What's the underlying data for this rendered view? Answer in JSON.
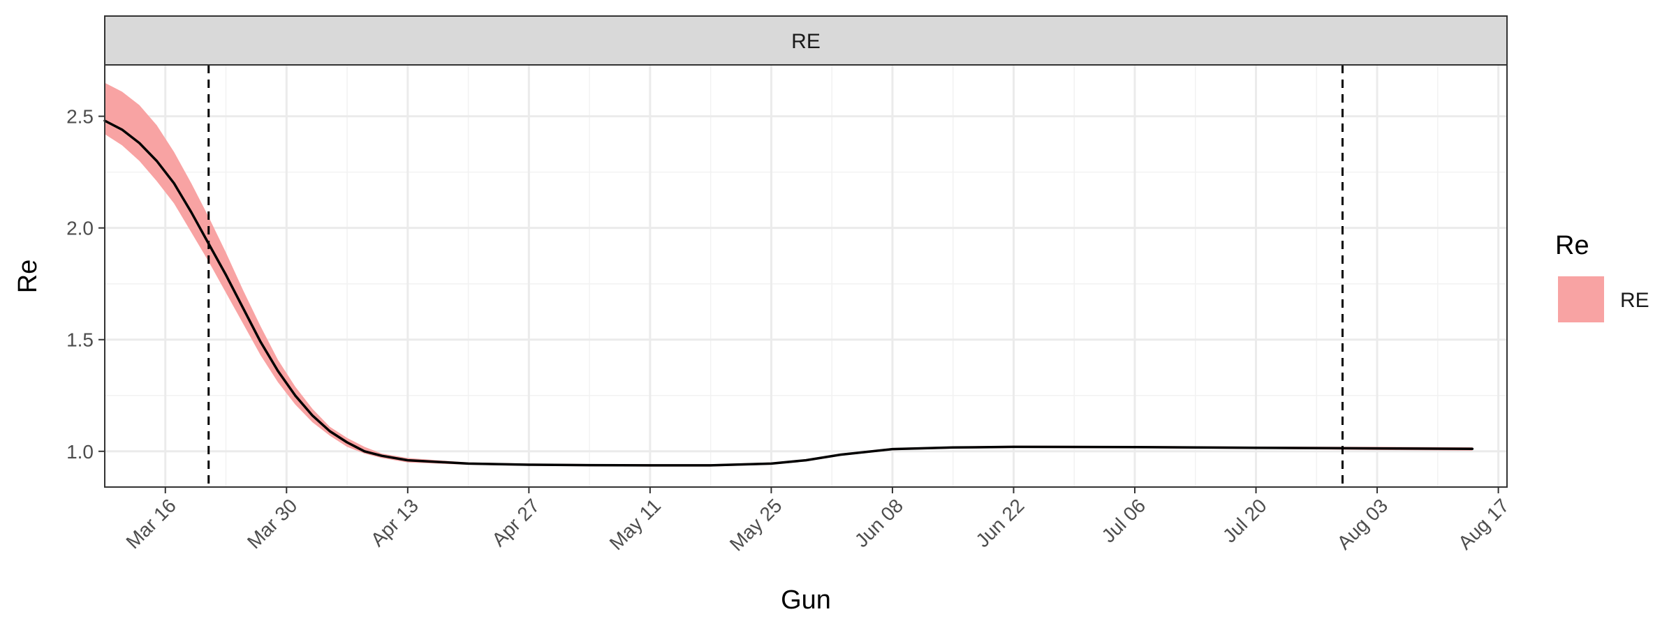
{
  "chart_data": {
    "type": "line",
    "facet_label": "RE",
    "xlabel": "Gun",
    "ylabel": "Re",
    "x_axis_type": "date",
    "xlim": [
      "2020-03-09",
      "2020-08-18"
    ],
    "ylim": [
      0.84,
      2.73
    ],
    "x_ticks": [
      {
        "date": "2020-03-16",
        "label": "Mar 16"
      },
      {
        "date": "2020-03-30",
        "label": "Mar 30"
      },
      {
        "date": "2020-04-13",
        "label": "Apr 13"
      },
      {
        "date": "2020-04-27",
        "label": "Apr 27"
      },
      {
        "date": "2020-05-11",
        "label": "May 11"
      },
      {
        "date": "2020-05-25",
        "label": "May 25"
      },
      {
        "date": "2020-06-08",
        "label": "Jun 08"
      },
      {
        "date": "2020-06-22",
        "label": "Jun 22"
      },
      {
        "date": "2020-07-06",
        "label": "Jul 06"
      },
      {
        "date": "2020-07-20",
        "label": "Jul 20"
      },
      {
        "date": "2020-08-03",
        "label": "Aug 03"
      },
      {
        "date": "2020-08-17",
        "label": "Aug 17"
      }
    ],
    "y_ticks": [
      {
        "value": 1.0,
        "label": "1.0"
      },
      {
        "value": 1.5,
        "label": "1.5"
      },
      {
        "value": 2.0,
        "label": "2.0"
      },
      {
        "value": 2.5,
        "label": "2.5"
      }
    ],
    "grid": true,
    "vlines": [
      "2020-03-21",
      "2020-07-30"
    ],
    "legend": {
      "title": "Re",
      "position": "right",
      "entries": [
        {
          "label": "RE",
          "color": "#F8A3A3"
        }
      ]
    },
    "series": [
      {
        "name": "RE",
        "line_color": "#000000",
        "ribbon_color": "#F8A3A3",
        "points": [
          {
            "x": "2020-03-09",
            "y": 2.48,
            "lo": 2.42,
            "hi": 2.65
          },
          {
            "x": "2020-03-11",
            "y": 2.44,
            "lo": 2.37,
            "hi": 2.61
          },
          {
            "x": "2020-03-13",
            "y": 2.38,
            "lo": 2.3,
            "hi": 2.55
          },
          {
            "x": "2020-03-15",
            "y": 2.3,
            "lo": 2.21,
            "hi": 2.46
          },
          {
            "x": "2020-03-17",
            "y": 2.2,
            "lo": 2.11,
            "hi": 2.34
          },
          {
            "x": "2020-03-19",
            "y": 2.07,
            "lo": 1.98,
            "hi": 2.2
          },
          {
            "x": "2020-03-21",
            "y": 1.93,
            "lo": 1.85,
            "hi": 2.05
          },
          {
            "x": "2020-03-23",
            "y": 1.79,
            "lo": 1.71,
            "hi": 1.89
          },
          {
            "x": "2020-03-25",
            "y": 1.64,
            "lo": 1.57,
            "hi": 1.72
          },
          {
            "x": "2020-03-27",
            "y": 1.49,
            "lo": 1.43,
            "hi": 1.56
          },
          {
            "x": "2020-03-29",
            "y": 1.36,
            "lo": 1.31,
            "hi": 1.41
          },
          {
            "x": "2020-03-31",
            "y": 1.25,
            "lo": 1.21,
            "hi": 1.29
          },
          {
            "x": "2020-04-02",
            "y": 1.16,
            "lo": 1.13,
            "hi": 1.19
          },
          {
            "x": "2020-04-04",
            "y": 1.09,
            "lo": 1.07,
            "hi": 1.11
          },
          {
            "x": "2020-04-06",
            "y": 1.04,
            "lo": 1.02,
            "hi": 1.06
          },
          {
            "x": "2020-04-08",
            "y": 1.0,
            "lo": 0.99,
            "hi": 1.02
          },
          {
            "x": "2020-04-10",
            "y": 0.98,
            "lo": 0.97,
            "hi": 0.99
          },
          {
            "x": "2020-04-13",
            "y": 0.96,
            "lo": 0.95,
            "hi": 0.97
          },
          {
            "x": "2020-04-20",
            "y": 0.945,
            "lo": 0.94,
            "hi": 0.95
          },
          {
            "x": "2020-04-27",
            "y": 0.94,
            "lo": 0.935,
            "hi": 0.945
          },
          {
            "x": "2020-05-04",
            "y": 0.938,
            "lo": 0.933,
            "hi": 0.943
          },
          {
            "x": "2020-05-11",
            "y": 0.937,
            "lo": 0.932,
            "hi": 0.942
          },
          {
            "x": "2020-05-18",
            "y": 0.937,
            "lo": 0.932,
            "hi": 0.942
          },
          {
            "x": "2020-05-25",
            "y": 0.945,
            "lo": 0.94,
            "hi": 0.95
          },
          {
            "x": "2020-05-29",
            "y": 0.96,
            "lo": 0.955,
            "hi": 0.965
          },
          {
            "x": "2020-06-02",
            "y": 0.985,
            "lo": 0.98,
            "hi": 0.99
          },
          {
            "x": "2020-06-08",
            "y": 1.01,
            "lo": 1.005,
            "hi": 1.015
          },
          {
            "x": "2020-06-15",
            "y": 1.017,
            "lo": 1.012,
            "hi": 1.022
          },
          {
            "x": "2020-06-22",
            "y": 1.02,
            "lo": 1.015,
            "hi": 1.025
          },
          {
            "x": "2020-07-06",
            "y": 1.019,
            "lo": 1.014,
            "hi": 1.024
          },
          {
            "x": "2020-07-20",
            "y": 1.016,
            "lo": 1.011,
            "hi": 1.021
          },
          {
            "x": "2020-08-03",
            "y": 1.013,
            "lo": 1.006,
            "hi": 1.02
          },
          {
            "x": "2020-08-14",
            "y": 1.011,
            "lo": 1.003,
            "hi": 1.018
          }
        ]
      }
    ]
  }
}
